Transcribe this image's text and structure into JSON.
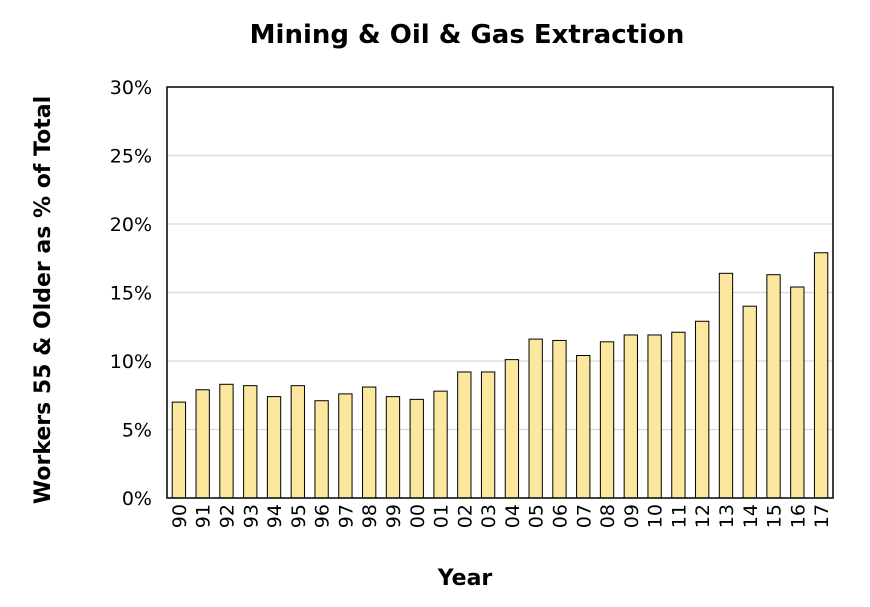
{
  "chart_data": {
    "type": "bar",
    "title": "Mining & Oil & Gas Extraction",
    "xlabel": "Year",
    "ylabel": "Workers 55 & Older as % of Total",
    "categories": [
      "90",
      "91",
      "92",
      "93",
      "94",
      "95",
      "96",
      "97",
      "98",
      "99",
      "00",
      "01",
      "02",
      "03",
      "04",
      "05",
      "06",
      "07",
      "08",
      "09",
      "10",
      "11",
      "12",
      "13",
      "14",
      "15",
      "16",
      "17"
    ],
    "values": [
      7.0,
      7.9,
      8.3,
      8.2,
      7.4,
      8.2,
      7.1,
      7.6,
      8.1,
      7.4,
      7.2,
      7.8,
      9.2,
      9.2,
      10.1,
      11.6,
      11.5,
      10.4,
      11.4,
      11.9,
      11.9,
      12.1,
      12.9,
      16.4,
      14.0,
      16.3,
      15.4,
      17.9
    ],
    "ylim": [
      0,
      30
    ],
    "yticks": [
      0,
      5,
      10,
      15,
      20,
      25,
      30
    ],
    "ytick_labels": [
      "0%",
      "5%",
      "10%",
      "15%",
      "20%",
      "25%",
      "30%"
    ],
    "grid": true,
    "bar_color": "#FBE79E",
    "bar_edge_color": "#000000"
  }
}
